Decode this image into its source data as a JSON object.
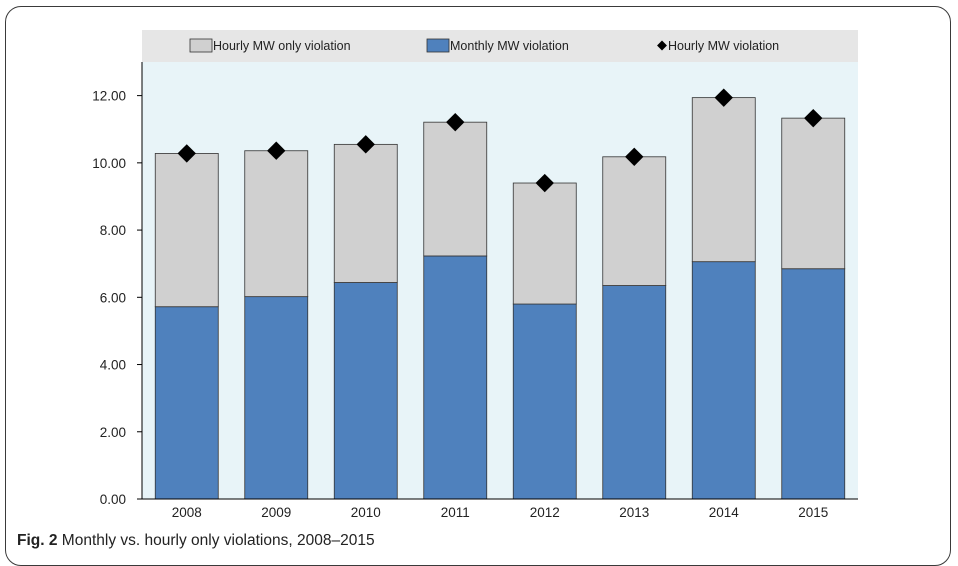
{
  "chart_data": {
    "type": "bar",
    "stacked": true,
    "categories": [
      "2008",
      "2009",
      "2010",
      "2011",
      "2012",
      "2013",
      "2014",
      "2015"
    ],
    "series": [
      {
        "name": "Monthly MW violation",
        "kind": "bar",
        "color": "#4f81bd",
        "values": [
          5.72,
          6.02,
          6.44,
          7.23,
          5.8,
          6.35,
          7.06,
          6.85
        ]
      },
      {
        "name": "Hourly MW only violation",
        "kind": "bar",
        "color": "#d0d0d0",
        "values": [
          4.56,
          4.34,
          4.11,
          3.98,
          3.6,
          3.83,
          4.88,
          4.48
        ]
      },
      {
        "name": "Hourly MW violation",
        "kind": "marker",
        "color": "#000000",
        "values": [
          10.28,
          10.36,
          10.55,
          11.21,
          9.4,
          10.18,
          11.94,
          11.33
        ]
      }
    ],
    "legend_order": [
      "Hourly MW only violation",
      "Monthly MW violation",
      "Hourly MW violation"
    ],
    "legend_placement": "top",
    "ylim": [
      0,
      13
    ],
    "yticks": [
      "0.00",
      "2.00",
      "4.00",
      "6.00",
      "8.00",
      "10.00",
      "12.00"
    ],
    "grid": false,
    "plot_background": "#e8f4f8",
    "legend_background": "#e6e6e6"
  },
  "caption": {
    "label": "Fig. 2",
    "text": " Monthly vs. hourly only violations, 2008–2015"
  }
}
